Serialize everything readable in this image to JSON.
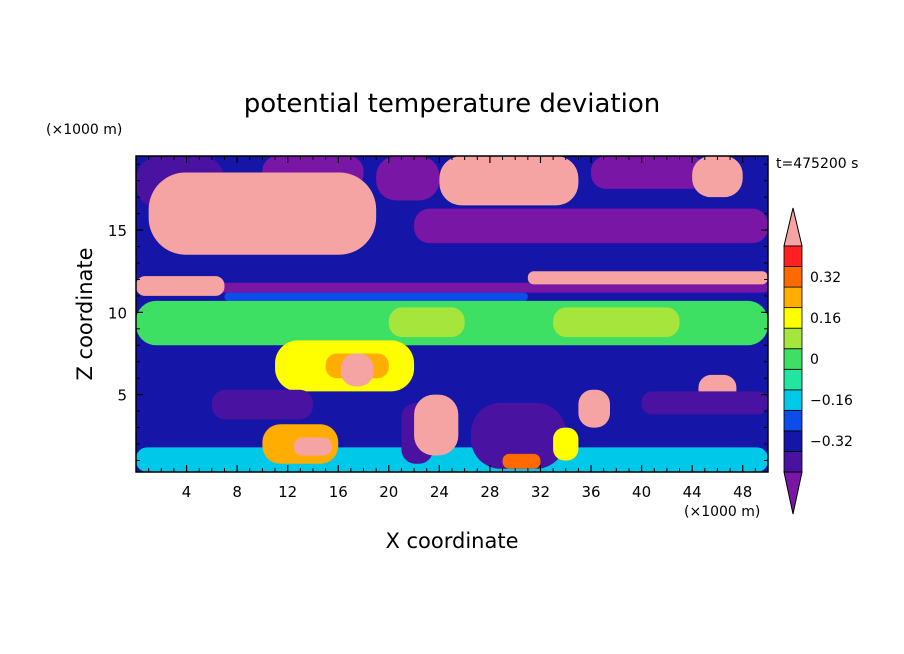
{
  "chart_data": {
    "type": "heatmap",
    "title": "potential temperature deviation",
    "time_label": "t=475200 s",
    "xlabel": "X coordinate",
    "ylabel": "Z coordinate",
    "x_unit": "(×1000 m)",
    "y_unit": "(×1000 m)",
    "xlim": [
      0,
      50
    ],
    "ylim": [
      0.3,
      19.5
    ],
    "x_ticks": [
      4,
      8,
      12,
      16,
      20,
      24,
      28,
      32,
      36,
      40,
      44,
      48
    ],
    "y_ticks": [
      5,
      10,
      15
    ],
    "colorbar": {
      "levels": [
        -0.48,
        -0.4,
        -0.32,
        -0.24,
        -0.16,
        -0.08,
        0,
        0.08,
        0.16,
        0.24,
        0.32,
        0.4,
        0.48
      ],
      "tick_labels": [
        "-0.32",
        "-0.16",
        "0",
        "0.16",
        "0.32"
      ],
      "tick_values": [
        -0.32,
        -0.16,
        0,
        0.16,
        0.32
      ],
      "colors": [
        "#7a16a6",
        "#4a12a0",
        "#1515a8",
        "#0a4de8",
        "#00c8e8",
        "#22e6a0",
        "#3ee063",
        "#a6e63c",
        "#ffff00",
        "#ffad00",
        "#ff6a00",
        "#ff2020",
        "#f5a3a3"
      ],
      "extend": "both"
    },
    "regions": [
      {
        "level": 2,
        "x": [
          0,
          50
        ],
        "z": [
          0.3,
          19.5
        ]
      },
      {
        "level": 4,
        "x": [
          0,
          50
        ],
        "z": [
          0.3,
          1.8
        ]
      },
      {
        "level": 1,
        "x": [
          0,
          7
        ],
        "z": [
          16.3,
          19.5
        ]
      },
      {
        "level": 0,
        "x": [
          10,
          18
        ],
        "z": [
          17.5,
          19.5
        ]
      },
      {
        "level": 0,
        "x": [
          19,
          24
        ],
        "z": [
          16.8,
          19.5
        ]
      },
      {
        "level": 0,
        "x": [
          36,
          45
        ],
        "z": [
          17.5,
          19.5
        ]
      },
      {
        "level": 12,
        "x": [
          1,
          19
        ],
        "z": [
          13.5,
          18.5
        ]
      },
      {
        "level": 12,
        "x": [
          24,
          35
        ],
        "z": [
          16.5,
          19.5
        ]
      },
      {
        "level": 12,
        "x": [
          44,
          48
        ],
        "z": [
          17.0,
          19.5
        ]
      },
      {
        "level": 0,
        "x": [
          22,
          50
        ],
        "z": [
          14.2,
          16.3
        ]
      },
      {
        "level": 2,
        "x": [
          20,
          50
        ],
        "z": [
          13.4,
          14.2
        ]
      },
      {
        "level": 0,
        "x": [
          0,
          50
        ],
        "z": [
          11.2,
          11.8
        ]
      },
      {
        "level": 12,
        "x": [
          0,
          7
        ],
        "z": [
          11.0,
          12.2
        ]
      },
      {
        "level": 12,
        "x": [
          31,
          50
        ],
        "z": [
          11.7,
          12.5
        ]
      },
      {
        "level": 3,
        "x": [
          7,
          31
        ],
        "z": [
          10.7,
          11.2
        ]
      },
      {
        "level": 6,
        "x": [
          0,
          50
        ],
        "z": [
          8.0,
          10.7
        ]
      },
      {
        "level": 7,
        "x": [
          20,
          26
        ],
        "z": [
          8.5,
          10.3
        ]
      },
      {
        "level": 7,
        "x": [
          33,
          43
        ],
        "z": [
          8.5,
          10.3
        ]
      },
      {
        "level": 8,
        "x": [
          11,
          22
        ],
        "z": [
          5.2,
          8.3
        ]
      },
      {
        "level": 9,
        "x": [
          15,
          20
        ],
        "z": [
          6.0,
          7.5
        ]
      },
      {
        "level": 12,
        "x": [
          16.2,
          18.8
        ],
        "z": [
          5.5,
          7.5
        ]
      },
      {
        "level": 12,
        "x": [
          44.5,
          47.5
        ],
        "z": [
          4.5,
          6.2
        ]
      },
      {
        "level": 1,
        "x": [
          6,
          14
        ],
        "z": [
          3.5,
          5.3
        ]
      },
      {
        "level": 1,
        "x": [
          21,
          23.5
        ],
        "z": [
          0.8,
          4.5
        ]
      },
      {
        "level": 1,
        "x": [
          26.5,
          34
        ],
        "z": [
          0.5,
          4.5
        ]
      },
      {
        "level": 1,
        "x": [
          40,
          50
        ],
        "z": [
          3.8,
          5.2
        ]
      },
      {
        "level": 9,
        "x": [
          10,
          16
        ],
        "z": [
          0.8,
          3.2
        ]
      },
      {
        "level": 12,
        "x": [
          12.5,
          15.5
        ],
        "z": [
          1.3,
          2.4
        ]
      },
      {
        "level": 12,
        "x": [
          22,
          25.5
        ],
        "z": [
          1.3,
          5.0
        ]
      },
      {
        "level": 12,
        "x": [
          35,
          37.5
        ],
        "z": [
          3.0,
          5.3
        ]
      },
      {
        "level": 8,
        "x": [
          33,
          35
        ],
        "z": [
          1.0,
          3.0
        ]
      },
      {
        "level": 10,
        "x": [
          29,
          32
        ],
        "z": [
          0.5,
          1.4
        ]
      }
    ]
  }
}
